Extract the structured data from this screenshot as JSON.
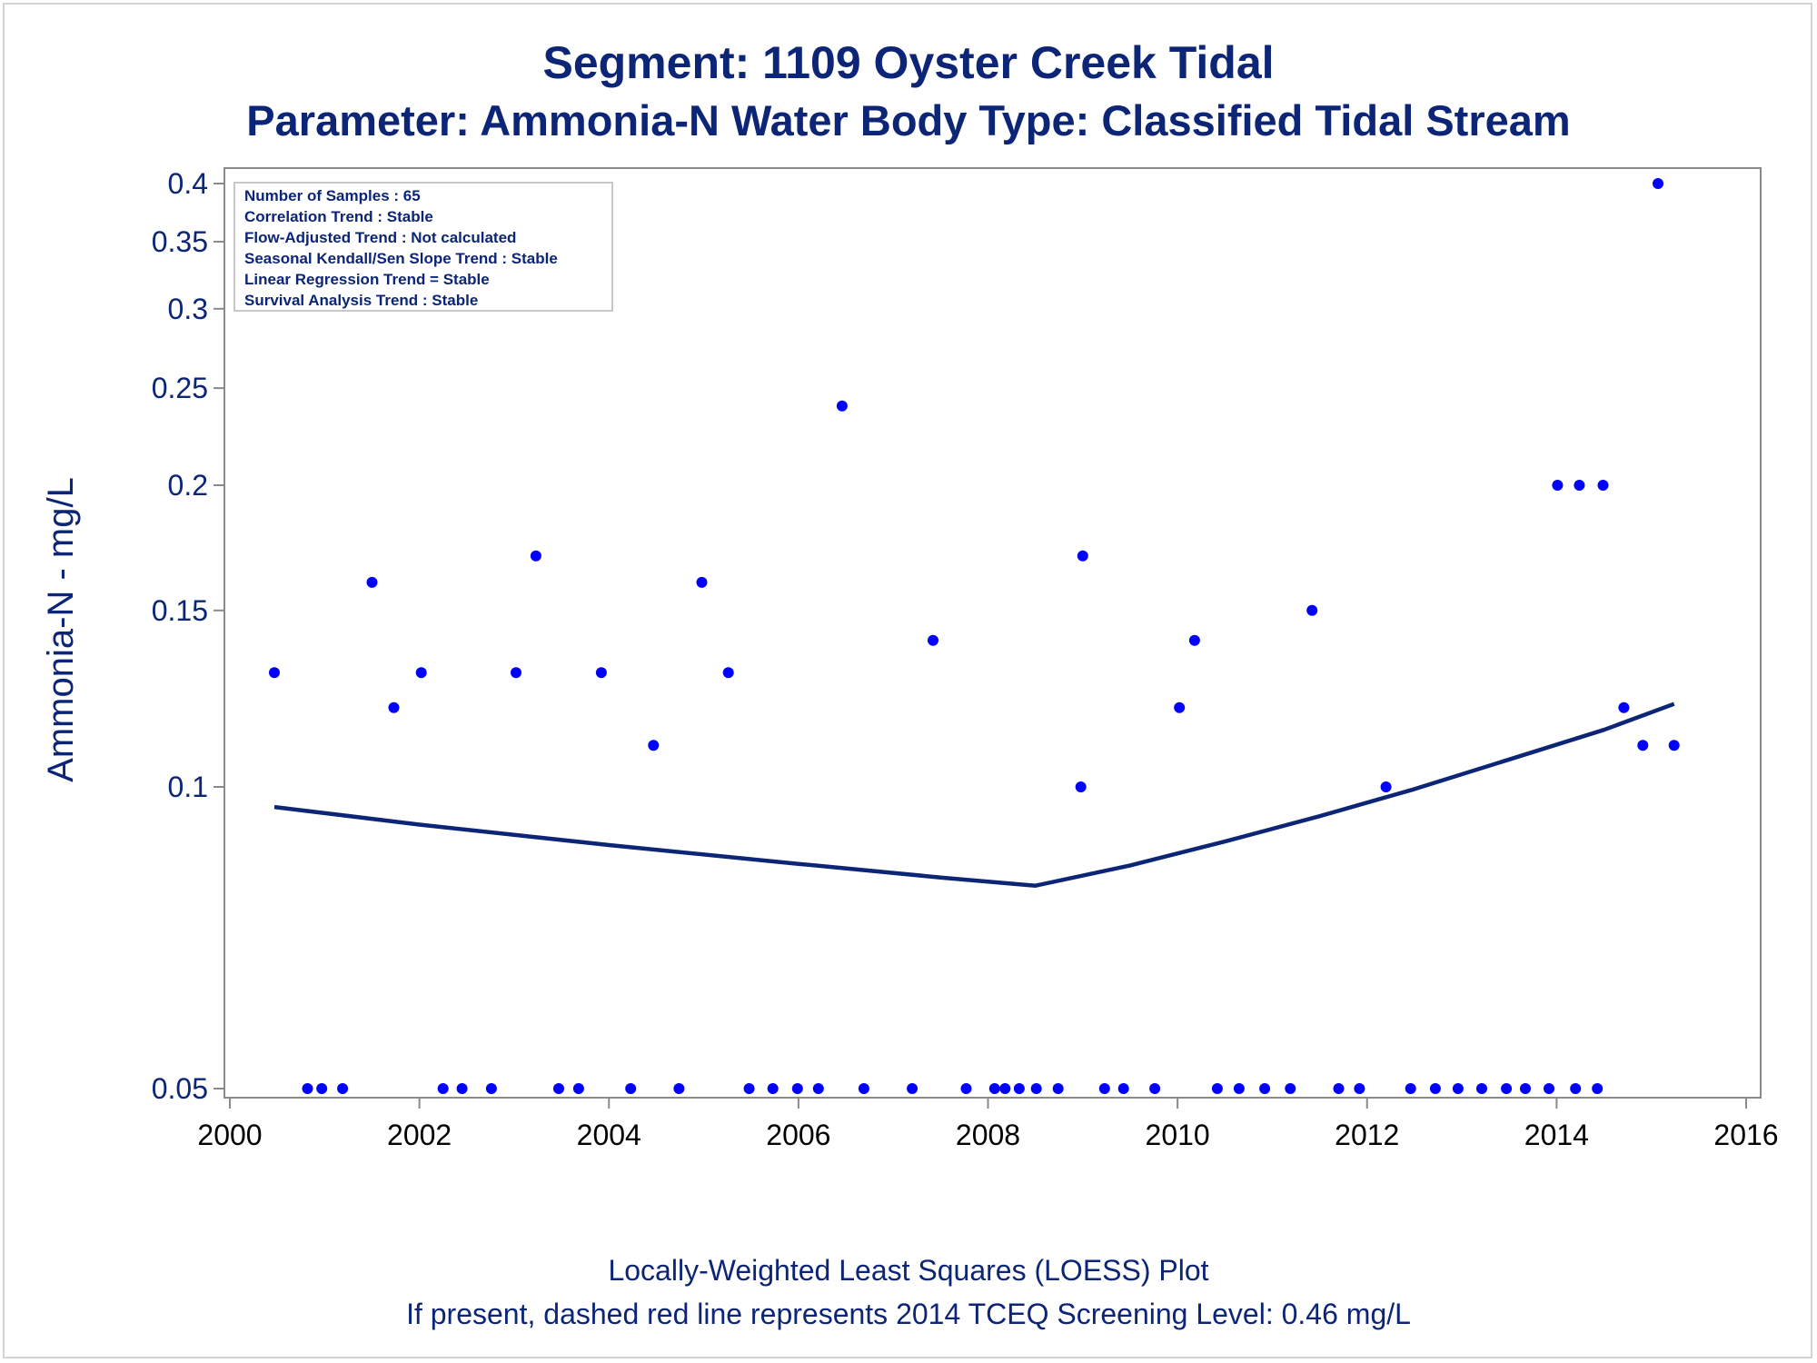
{
  "chart_data": {
    "type": "scatter",
    "title": "Segment: 1109  Oyster Creek Tidal",
    "subtitle": "Parameter: Ammonia-N   Water Body Type: Classified Tidal Stream",
    "xlabel": "",
    "ylabel": "Ammonia-N - mg/L",
    "y_scale": "log",
    "xlim": [
      2000,
      2016
    ],
    "ylim": [
      0.05,
      0.41
    ],
    "x_ticks": [
      2000,
      2002,
      2004,
      2006,
      2008,
      2010,
      2012,
      2014,
      2016
    ],
    "y_ticks": [
      0.05,
      0.1,
      0.15,
      0.2,
      0.25,
      0.3,
      0.35,
      0.4
    ],
    "y_tick_labels": [
      "0.05",
      "0.1",
      "0.15",
      "0.2",
      "0.25",
      "0.3",
      "0.35",
      "0.4"
    ],
    "grid": false,
    "info_box": [
      "Number of Samples : 65",
      "Correlation Trend : Stable",
      "Flow-Adjusted Trend : Not calculated",
      "Seasonal Kendall/Sen Slope Trend : Stable",
      "Linear Regression Trend = Stable",
      "Survival Analysis Trend : Stable"
    ],
    "footnotes": [
      "Locally-Weighted Least Squares (LOESS) Plot",
      "If present, dashed red line represents 2014 TCEQ Screening Level: 0.46 mg/L"
    ],
    "colors": {
      "points": "#0000ff",
      "line": "#0c2577",
      "text": "#0c2577",
      "frame": "#8a8a8a"
    },
    "series": [
      {
        "values": [
          [
            2000.47,
            0.13
          ],
          [
            2000.82,
            0.05
          ],
          [
            2000.97,
            0.05
          ],
          [
            2001.19,
            0.05
          ],
          [
            2001.5,
            0.16
          ],
          [
            2001.73,
            0.12
          ],
          [
            2002.02,
            0.13
          ],
          [
            2002.25,
            0.05
          ],
          [
            2002.45,
            0.05
          ],
          [
            2002.76,
            0.05
          ],
          [
            2003.02,
            0.13
          ],
          [
            2003.23,
            0.17
          ],
          [
            2003.47,
            0.05
          ],
          [
            2003.68,
            0.05
          ],
          [
            2003.92,
            0.13
          ],
          [
            2004.23,
            0.05
          ],
          [
            2004.47,
            0.11
          ],
          [
            2004.74,
            0.05
          ],
          [
            2004.98,
            0.16
          ],
          [
            2005.26,
            0.13
          ],
          [
            2005.48,
            0.05
          ],
          [
            2005.73,
            0.05
          ],
          [
            2005.99,
            0.05
          ],
          [
            2006.21,
            0.05
          ],
          [
            2006.46,
            0.24
          ],
          [
            2006.69,
            0.05
          ],
          [
            2007.2,
            0.05
          ],
          [
            2007.42,
            0.14
          ],
          [
            2007.77,
            0.05
          ],
          [
            2008.07,
            0.05
          ],
          [
            2008.18,
            0.05
          ],
          [
            2008.33,
            0.05
          ],
          [
            2008.51,
            0.05
          ],
          [
            2008.74,
            0.05
          ],
          [
            2008.98,
            0.1
          ],
          [
            2009.0,
            0.17
          ],
          [
            2009.23,
            0.05
          ],
          [
            2009.43,
            0.05
          ],
          [
            2009.76,
            0.05
          ],
          [
            2010.02,
            0.12
          ],
          [
            2010.18,
            0.14
          ],
          [
            2010.42,
            0.05
          ],
          [
            2010.65,
            0.05
          ],
          [
            2010.92,
            0.05
          ],
          [
            2011.19,
            0.05
          ],
          [
            2011.42,
            0.15
          ],
          [
            2011.7,
            0.05
          ],
          [
            2011.92,
            0.05
          ],
          [
            2012.2,
            0.1
          ],
          [
            2012.46,
            0.05
          ],
          [
            2012.72,
            0.05
          ],
          [
            2012.96,
            0.05
          ],
          [
            2013.21,
            0.05
          ],
          [
            2013.47,
            0.05
          ],
          [
            2013.67,
            0.05
          ],
          [
            2013.92,
            0.05
          ],
          [
            2014.01,
            0.2
          ],
          [
            2014.2,
            0.05
          ],
          [
            2014.24,
            0.2
          ],
          [
            2014.43,
            0.05
          ],
          [
            2014.49,
            0.2
          ],
          [
            2014.71,
            0.12
          ],
          [
            2014.91,
            0.11
          ],
          [
            2015.07,
            0.4
          ],
          [
            2015.24,
            0.11
          ]
        ]
      },
      {
        "line": true,
        "values": [
          [
            2000.47,
            0.0955
          ],
          [
            2002.0,
            0.0917
          ],
          [
            2004.0,
            0.0875
          ],
          [
            2006.0,
            0.0838
          ],
          [
            2007.5,
            0.0812
          ],
          [
            2008.5,
            0.0797
          ],
          [
            2009.5,
            0.0835
          ],
          [
            2010.5,
            0.0882
          ],
          [
            2011.5,
            0.0935
          ],
          [
            2012.5,
            0.0995
          ],
          [
            2013.5,
            0.1065
          ],
          [
            2014.5,
            0.114
          ],
          [
            2015.24,
            0.121
          ]
        ]
      }
    ]
  }
}
